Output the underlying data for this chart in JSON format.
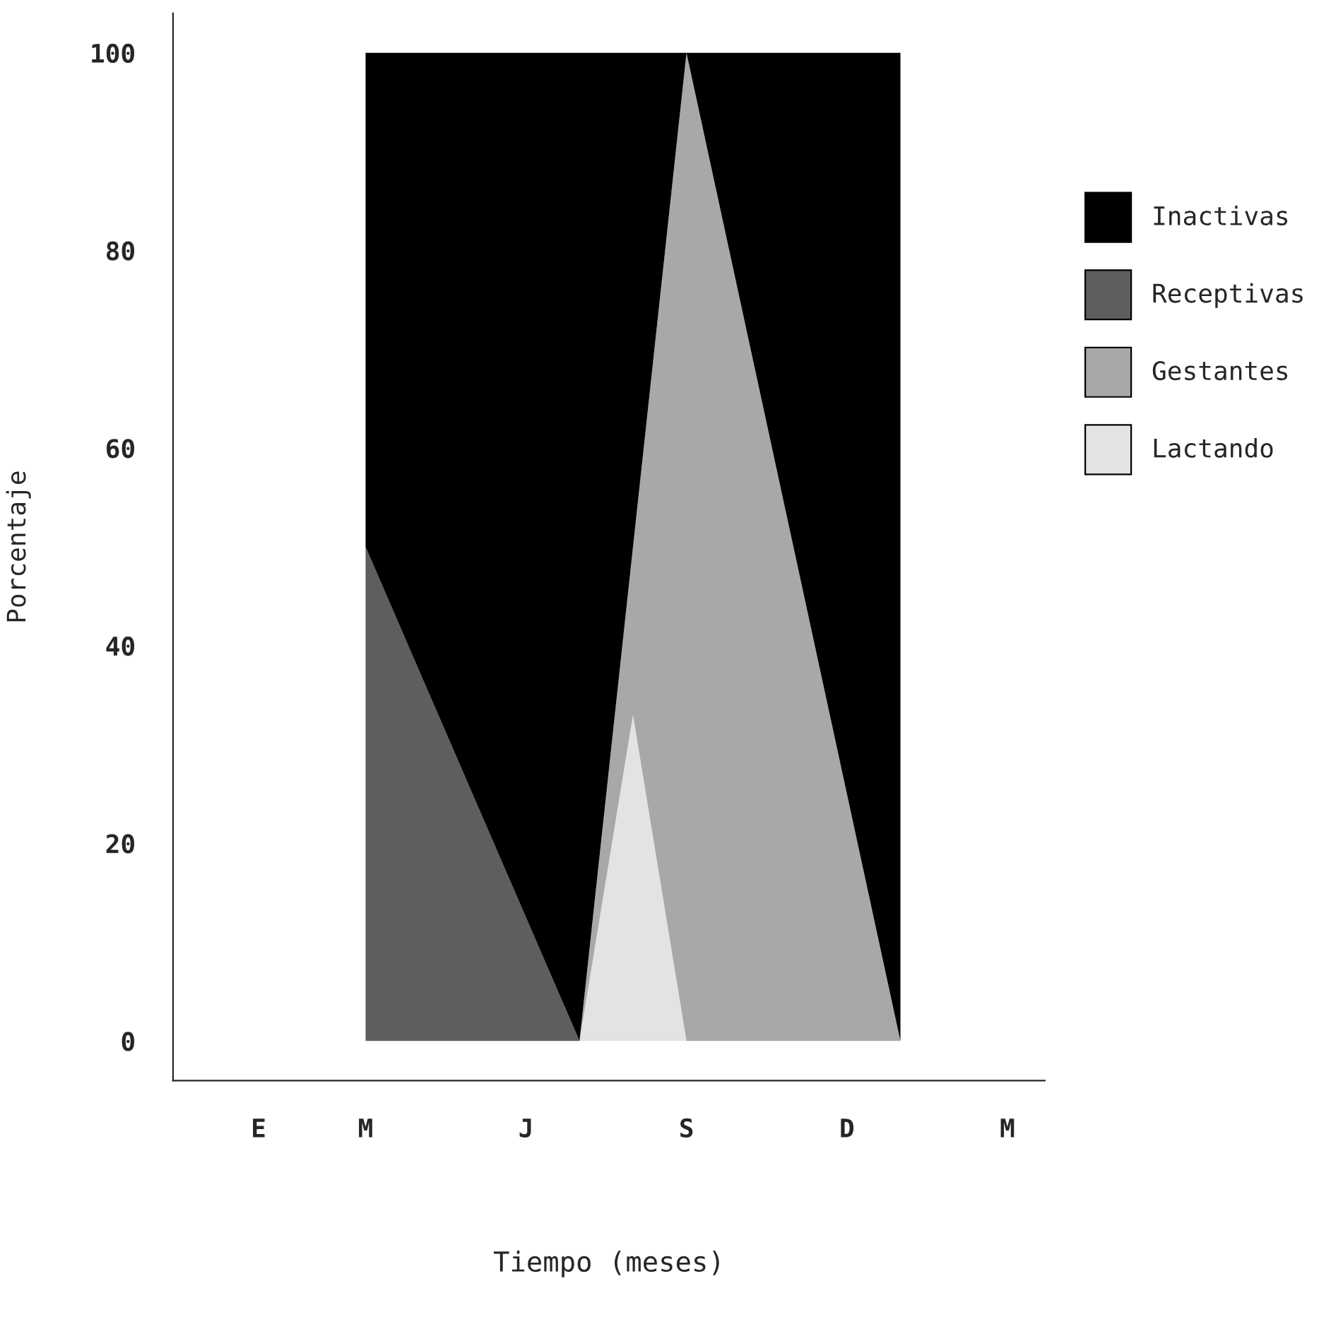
{
  "chart_data": {
    "type": "area",
    "stacked": true,
    "xlabel": "Tiempo (meses)",
    "ylabel": "Porcentaje",
    "categories": [
      null,
      "E",
      null,
      "M",
      null,
      null,
      "J",
      null,
      null,
      "S",
      null,
      null,
      "D",
      null,
      null,
      "M"
    ],
    "series": [
      {
        "name": "Lactando",
        "color": "#e3e3e3",
        "values": [
          null,
          null,
          null,
          null,
          null,
          null,
          null,
          0,
          33,
          0,
          null,
          null,
          null,
          null,
          null,
          null
        ]
      },
      {
        "name": "Gestantes",
        "color": "#a8a8a8",
        "values": [
          null,
          null,
          null,
          null,
          null,
          null,
          null,
          0,
          17,
          100,
          75,
          50,
          25,
          0,
          null,
          null
        ]
      },
      {
        "name": "Receptivas",
        "color": "#5e5e5e",
        "values": [
          null,
          null,
          null,
          50,
          37.5,
          25,
          12.5,
          0,
          null,
          null,
          null,
          null,
          null,
          null,
          null,
          null
        ]
      },
      {
        "name": "Inactivas",
        "color": "#000000",
        "values": [
          null,
          null,
          null,
          50,
          62.5,
          75,
          87.5,
          100,
          50,
          0,
          25,
          50,
          75,
          100,
          null,
          null
        ]
      }
    ],
    "ylim": [
      -4,
      104
    ],
    "yticks": [
      0,
      20,
      40,
      60,
      80,
      100
    ],
    "grid": false,
    "legend": "right"
  }
}
